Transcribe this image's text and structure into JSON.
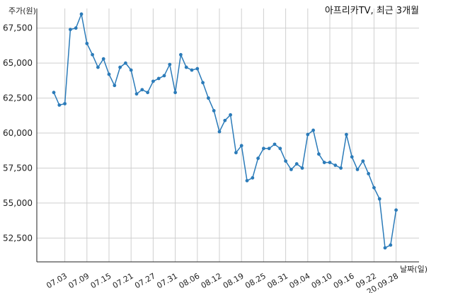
{
  "chart_data": {
    "type": "line",
    "title": "아프리카TV, 최근 3개월",
    "ylabel": "주가(원)",
    "xlabel": "날짜(일)",
    "ylim": [
      50800,
      68900
    ],
    "y_ticks": [
      52500,
      55000,
      57500,
      60000,
      62500,
      65000,
      67500
    ],
    "y_tick_labels": [
      "52,500",
      "55,000",
      "57,500",
      "60,000",
      "62,500",
      "65,000",
      "67,500"
    ],
    "x_tick_labels": [
      "07.03",
      "07.09",
      "07.15",
      "07.21",
      "07.27",
      "07.31",
      "08.06",
      "08.12",
      "08.19",
      "08.25",
      "08.31",
      "09.04",
      "09.10",
      "09.16",
      "09.22",
      "20.09.28"
    ],
    "x_tick_index": [
      2,
      6,
      10,
      14,
      18,
      22,
      26,
      30,
      34,
      38,
      42,
      46,
      50,
      54,
      58,
      62
    ],
    "grid": true,
    "series": [
      {
        "values": [
          62900,
          62000,
          62100,
          67400,
          67500,
          68500,
          66400,
          65600,
          64700,
          65300,
          64200,
          63400,
          64700,
          65000,
          64500,
          62800,
          63100,
          62900,
          63700,
          63900,
          64100,
          64900,
          62900,
          65600,
          64700,
          64500,
          64600,
          63600,
          62500,
          61600,
          60100,
          60900,
          61300,
          58600,
          59100,
          56600,
          56800,
          58200,
          58900,
          58900,
          59200,
          58900,
          58000,
          57400,
          57800,
          57500,
          59900,
          60200,
          58500,
          57900,
          57900,
          57700,
          57500,
          59900,
          58300,
          57400,
          58000,
          57100,
          56100,
          55300,
          51800,
          52000,
          54500
        ],
        "color": "#2b7bb9"
      }
    ]
  }
}
